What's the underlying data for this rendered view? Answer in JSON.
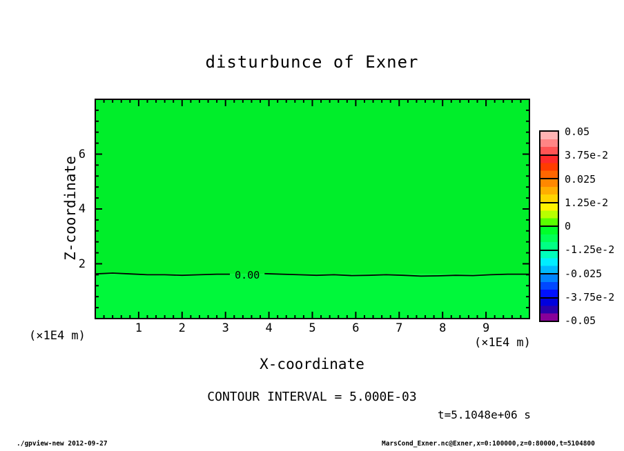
{
  "title": "disturbunce of Exner",
  "footer": {
    "left": "./gpview-new  2012-09-27",
    "right": "MarsCond_Exner.nc@Exner,x=0:100000,z=0:80000,t=5104800"
  },
  "annotations": {
    "contour_interval": "CONTOUR INTERVAL = 5.000E-03",
    "time": "t=5.1048e+06 s"
  },
  "chart_data": {
    "type": "heatmap",
    "title": "disturbunce of Exner",
    "xlabel": "X-coordinate",
    "ylabel": "Z-coordinate",
    "x_unit": "(×1E4 m)",
    "y_unit": "(×1E4 m)",
    "xlim": [
      0,
      10
    ],
    "ylim": [
      0,
      8
    ],
    "x_major_ticks": [
      1,
      2,
      3,
      4,
      5,
      6,
      7,
      8,
      9
    ],
    "y_major_ticks": [
      2,
      4,
      6
    ],
    "x_minor_step": 0.2,
    "y_minor_step": 0.4,
    "grid": false,
    "field": {
      "description": "Exner disturbance nearly zero everywhere; single 0.00 contour near z=1.6e4 m",
      "upper_band_color": "#00ee2a",
      "lower_band_color": "#00f83a"
    },
    "contour": {
      "level": 0.0,
      "label": "0.00",
      "label_x": 3.5,
      "interval": 0.005,
      "points_upper_segment": [
        [
          0,
          1.63
        ],
        [
          0.4,
          1.66
        ],
        [
          0.8,
          1.63
        ],
        [
          1.2,
          1.6
        ],
        [
          1.6,
          1.6
        ],
        [
          2.0,
          1.58
        ],
        [
          2.4,
          1.6
        ],
        [
          2.8,
          1.62
        ],
        [
          3.1,
          1.62
        ]
      ],
      "points_lower_segment": [
        [
          3.9,
          1.64
        ],
        [
          4.3,
          1.62
        ],
        [
          4.7,
          1.6
        ],
        [
          5.1,
          1.58
        ],
        [
          5.5,
          1.6
        ],
        [
          5.9,
          1.57
        ],
        [
          6.3,
          1.58
        ],
        [
          6.7,
          1.6
        ],
        [
          7.1,
          1.58
        ],
        [
          7.5,
          1.55
        ],
        [
          7.9,
          1.56
        ],
        [
          8.3,
          1.58
        ],
        [
          8.7,
          1.57
        ],
        [
          9.1,
          1.6
        ],
        [
          9.5,
          1.62
        ],
        [
          10,
          1.62
        ]
      ]
    },
    "colorbar": {
      "position": "right",
      "labels": [
        "0.05",
        "3.75e-2",
        "0.025",
        "1.25e-2",
        "0",
        "-1.25e-2",
        "-0.025",
        "-3.75e-2",
        "-0.05"
      ],
      "boxes": [
        [
          "#ffb4b4",
          "#ff8585",
          "#ff5454"
        ],
        [
          "#ff2a2a",
          "#ff3c00",
          "#ff6600"
        ],
        [
          "#ff8800",
          "#ffae00",
          "#ffd400"
        ],
        [
          "#fff200",
          "#b8ff00",
          "#59ff00"
        ],
        [
          "#00ff2a",
          "#00ff55",
          "#00ff84"
        ],
        [
          "#00ffbb",
          "#00eeff",
          "#00baff"
        ],
        [
          "#0084ff",
          "#0048ff",
          "#0011ff"
        ],
        [
          "#0000dd",
          "#2a00aa",
          "#880099"
        ]
      ]
    }
  }
}
